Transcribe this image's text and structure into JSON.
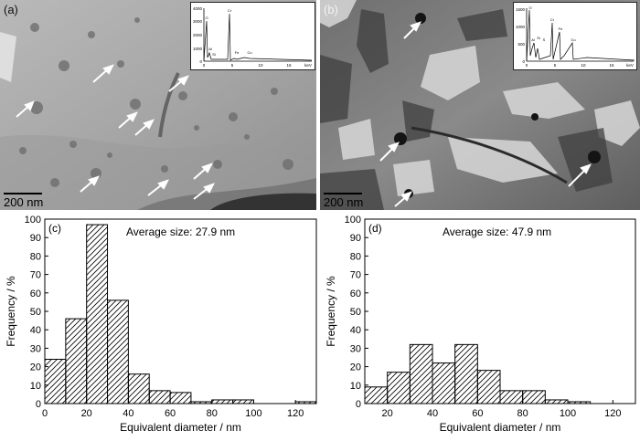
{
  "micrographs": [
    {
      "label": "(a)",
      "scale_bar": "200 nm",
      "eds_x_ticks": [
        "0",
        "5",
        "10",
        "15",
        "keV"
      ],
      "eds_y_ticks": [
        "0",
        "1000",
        "2000",
        "3000",
        "4000"
      ],
      "eds_peaks": [
        "O",
        "Al",
        "Si",
        "Cr",
        "Fe",
        "Cu"
      ]
    },
    {
      "label": "(b)",
      "scale_bar": "200 nm",
      "eds_x_ticks": [
        "0",
        "5",
        "10",
        "15",
        "keV"
      ],
      "eds_y_ticks": [
        "0",
        "500",
        "1000",
        "1500"
      ],
      "eds_peaks": [
        "O",
        "Al",
        "Si",
        "S",
        "Cr",
        "Fe",
        "Cu"
      ]
    }
  ],
  "chart_data": [
    {
      "panel": "(c)",
      "type": "bar",
      "annotation": "Average size: 27.9 nm",
      "xlabel": "Equivalent diameter / nm",
      "ylabel": "Frequency / %",
      "xlim": [
        0,
        130
      ],
      "ylim": [
        0,
        100
      ],
      "x_ticks": [
        0,
        20,
        40,
        60,
        80,
        100,
        120
      ],
      "y_ticks": [
        0,
        10,
        20,
        30,
        40,
        50,
        60,
        70,
        80,
        90,
        100
      ],
      "bin_edges": [
        0,
        10,
        20,
        30,
        40,
        50,
        60,
        70,
        80,
        90,
        100,
        110,
        120,
        130
      ],
      "values": [
        24,
        46,
        97,
        56,
        16,
        7,
        6,
        1,
        2,
        2,
        0,
        0,
        1
      ],
      "fill": "diagonal hatch",
      "grid": false
    },
    {
      "panel": "(d)",
      "type": "bar",
      "annotation": "Average size: 47.9 nm",
      "xlabel": "Equivalent diameter / nm",
      "ylabel": "Frequency / %",
      "xlim": [
        10,
        130
      ],
      "ylim": [
        0,
        100
      ],
      "x_ticks": [
        20,
        40,
        60,
        80,
        100,
        120
      ],
      "y_ticks": [
        0,
        10,
        20,
        30,
        40,
        50,
        60,
        70,
        80,
        90,
        100
      ],
      "bin_edges": [
        10,
        20,
        30,
        40,
        50,
        60,
        70,
        80,
        90,
        100,
        110
      ],
      "values": [
        9,
        17,
        32,
        22,
        32,
        18,
        7,
        7,
        2,
        1
      ],
      "fill": "diagonal hatch",
      "grid": false
    }
  ]
}
